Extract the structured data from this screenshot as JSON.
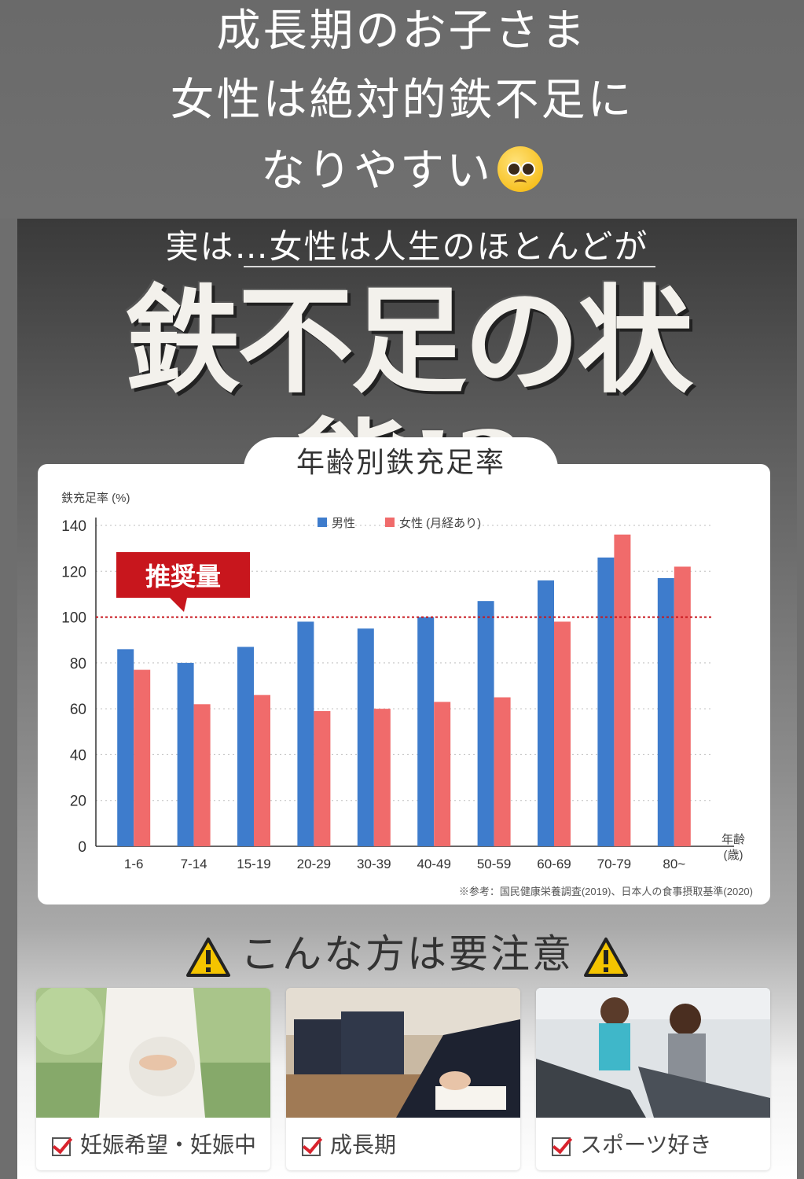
{
  "caption": {
    "line1": "成長期のお子さま",
    "line2": "女性は絶対的鉄不足に",
    "line3": "なりやすい",
    "emoji": "pleading-face-emoji"
  },
  "poster": {
    "subheading": "実は…女性は人生のほとんどが",
    "headline": "鉄不足の状態!?",
    "chart_tab_title": "年齢別鉄充足率",
    "warning_text": "こんな方は要注意",
    "cards": [
      {
        "label": "妊娠希望・妊娠中",
        "icon": "checkbox-icon"
      },
      {
        "label": "成長期",
        "icon": "checkbox-icon"
      },
      {
        "label": "スポーツ好き",
        "icon": "checkbox-icon"
      }
    ]
  },
  "chart_data": {
    "type": "bar",
    "title": "年齢別鉄充足率",
    "ylabel": "鉄充足率 (%)",
    "xlabel": "年齢",
    "xunit": "(歳)",
    "categories": [
      "1-6",
      "7-14",
      "15-19",
      "20-29",
      "30-39",
      "40-49",
      "50-59",
      "60-69",
      "70-79",
      "80~"
    ],
    "series": [
      {
        "name": "男性",
        "color": "#3e7ccc",
        "values": [
          86,
          80,
          87,
          98,
          95,
          100,
          107,
          116,
          126,
          117
        ]
      },
      {
        "name": "女性 (月経あり)",
        "color": "#f06b6b",
        "values": [
          77,
          62,
          66,
          59,
          60,
          63,
          65,
          98,
          136,
          122
        ]
      }
    ],
    "ylim": [
      0,
      140
    ],
    "yticks": [
      0,
      20,
      40,
      60,
      80,
      100,
      120,
      140
    ],
    "reference_line": {
      "value": 100,
      "label": "推奨量",
      "color": "#c8161d"
    },
    "grid": "dotted horizontal",
    "legend": "top-center",
    "note": "※参考：国民健康栄養調査(2019)、日本人の食事摂取基準(2020)"
  }
}
